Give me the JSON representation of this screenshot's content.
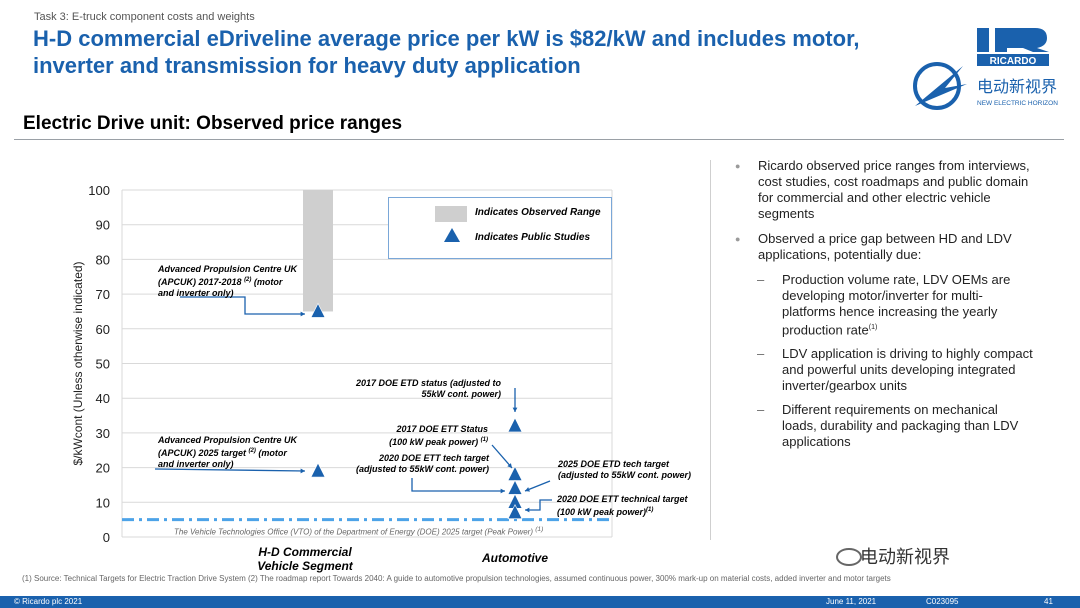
{
  "header": {
    "task_label": "Task 3: E-truck component costs and weights",
    "title_line1": "H-D commercial eDriveline average price per kW is $82/kW and includes motor,",
    "title_line2": "inverter and transmission for heavy duty application",
    "subtitle": "Electric Drive unit: Observed price ranges"
  },
  "logo": {
    "brand": "RICARDO",
    "cn_text": "电动新视界",
    "en_text": "NEW ELECTRIC HORIZON"
  },
  "legend": {
    "observed_range": "Indicates Observed Range",
    "public_studies": "Indicates Public Studies"
  },
  "chart_data": {
    "type": "scatter",
    "ylabel": "$/kWcont (Unless otherwise indicated)",
    "ylim": [
      0,
      100
    ],
    "yticks": [
      "0",
      "10",
      "20",
      "30",
      "40",
      "50",
      "60",
      "70",
      "80",
      "90",
      "100"
    ],
    "grid": true,
    "categories": [
      "H-D Commercial\nVehicle Segment",
      "Automotive"
    ],
    "observed_range": {
      "category": "H-D Commercial\nVehicle Segment",
      "low": 65,
      "high": 100
    },
    "points": [
      {
        "category": "H-D Commercial\nVehicle Segment",
        "y": 65,
        "label": "Advanced Propulsion Centre UK (APCUK) 2017-2018 (2) (motor and inverter only)"
      },
      {
        "category": "H-D Commercial\nVehicle Segment",
        "y": 19,
        "label": "Advanced Propulsion Centre UK (APCUK) 2025 target (2) (motor and inverter only)"
      },
      {
        "category": "Automotive",
        "y": 32,
        "label": "2017 DOE ETD status (adjusted to 55kW cont. power)"
      },
      {
        "category": "Automotive",
        "y": 18,
        "label": "2017 DOE ETT Status (100 kW peak power) (1)"
      },
      {
        "category": "Automotive",
        "y": 14,
        "label": "2020 DOE ETT tech target (adjusted to 55kW cont. power)"
      },
      {
        "category": "Automotive",
        "y": 10,
        "label": "2025 DOE ETD tech target (adjusted to 55kW cont. power)"
      },
      {
        "category": "Automotive",
        "y": 7,
        "label": "2020 DOE ETT technical target (100 kW peak power)(1)"
      }
    ],
    "reference_line": {
      "y": 5,
      "label": "The Vehicle Technologies Office (VTO) of the Department of Energy (DOE) 2025 target (Peak Power)"
    }
  },
  "annotations": {
    "apcuk_2017": {
      "l1": "Advanced Propulsion Centre UK",
      "l2": "(APCUK) 2017-2018",
      "sup": "(2)",
      "l2b": " (motor",
      "l3": "and inverter only)"
    },
    "apcuk_2025": {
      "l1": "Advanced Propulsion Centre UK",
      "l2": "(APCUK) 2025 target",
      "sup": "(2)",
      "l2b": " (motor",
      "l3": "and inverter only)"
    },
    "doe_etd_2017": {
      "l1": "2017 DOE ETD status (adjusted to",
      "l2": "55kW cont. power)"
    },
    "doe_ett_2017": {
      "l1": "2017 DOE ETT Status",
      "l2": "(100 kW peak power)",
      "sup": "(1)"
    },
    "doe_ett_2020": {
      "l1": "2020 DOE ETT tech target",
      "l2": "(adjusted to 55kW cont. power)"
    },
    "doe_etd_2025": {
      "l1": "2025 DOE ETD tech target",
      "l2": "(adjusted to 55kW cont. power)"
    },
    "doe_ett_tech_2020": {
      "l1": "2020 DOE ETT technical target",
      "l2": "(100 kW peak power)",
      "sup": "(1)"
    },
    "vto": {
      "text": "The Vehicle Technologies Office (VTO) of the Department of Energy (DOE) 2025 target (Peak Power)",
      "sup": "(1)"
    }
  },
  "categories": {
    "hd_l1": "H-D Commercial",
    "hd_l2": "Vehicle Segment",
    "auto": "Automotive"
  },
  "bullets": {
    "b1": "Ricardo observed price ranges from interviews, cost studies, cost roadmaps and public domain for commercial and other electric vehicle segments",
    "b2": "Observed a price gap between HD and LDV applications, potentially due:",
    "s1": "Production volume rate, LDV OEMs are developing motor/inverter for multi-platforms hence increasing the yearly production rate",
    "s1_sup": "(1)",
    "s2": "LDV application is driving to highly compact and powerful units developing integrated inverter/gearbox units",
    "s3": "Different requirements on mechanical loads, durability and packaging than LDV applications"
  },
  "footnote": "(1)  Source: Technical Targets for Electric Traction Drive System (2) The roadmap report Towards 2040: A guide to automotive propulsion technologies, assumed continuous power, 300% mark-up on material costs, added inverter and motor targets",
  "watermark": "电动新视界",
  "footer": {
    "copyright": "© Ricardo plc 2021",
    "date": "June 11,  2021",
    "code": "C023095",
    "page": "41"
  },
  "colors": {
    "accent": "#1a61ad",
    "range": "#cfcfcf",
    "target_line": "#4da3e8"
  }
}
